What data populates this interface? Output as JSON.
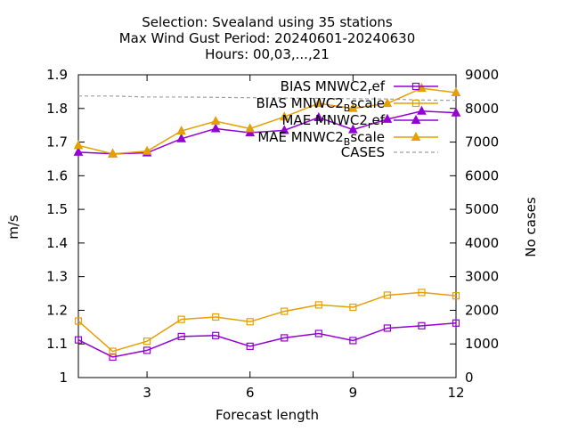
{
  "chart_data": {
    "type": "line",
    "title_lines": [
      "Selection: Svealand using    35 stations",
      "Max Wind Gust   Period: 20240601-20240630",
      "Hours: 00,03,...,21"
    ],
    "xlabel": "Forecast length",
    "ylabel": "m/s",
    "y2label": "No cases",
    "x": [
      1,
      2,
      3,
      4,
      5,
      6,
      7,
      8,
      9,
      10,
      11,
      12
    ],
    "xlim": [
      1,
      12
    ],
    "ylim": [
      1.0,
      1.9
    ],
    "y2lim": [
      0,
      9000
    ],
    "xticks": [
      3,
      6,
      9,
      12
    ],
    "yticks": [
      1,
      1.1,
      1.2,
      1.3,
      1.4,
      1.5,
      1.6,
      1.7,
      1.8,
      1.9
    ],
    "y2ticks": [
      0,
      1000,
      2000,
      3000,
      4000,
      5000,
      6000,
      7000,
      8000,
      9000
    ],
    "grid": false,
    "legend_position": "top-right",
    "series": [
      {
        "label": "BIAS MNWC2_ref",
        "legend_main": "BIAS MNWC2",
        "legend_sub": "r",
        "legend_rest": "ef",
        "color": "#9400d3",
        "marker": "square",
        "axis": "y",
        "values": [
          1.112,
          1.061,
          1.081,
          1.122,
          1.125,
          1.093,
          1.118,
          1.131,
          1.11,
          1.147,
          1.154,
          1.162
        ]
      },
      {
        "label": "BIAS MNWC2_Bscale",
        "legend_main": "BIAS MNWC2",
        "legend_sub": "B",
        "legend_rest": "scale",
        "color": "#e69f00",
        "marker": "square",
        "axis": "y",
        "values": [
          1.168,
          1.078,
          1.108,
          1.173,
          1.18,
          1.166,
          1.197,
          1.216,
          1.209,
          1.245,
          1.253,
          1.243
        ]
      },
      {
        "label": "MAE MNWC2_ref",
        "legend_main": "MAE MNWC2",
        "legend_sub": "r",
        "legend_rest": "ef",
        "color": "#9400d3",
        "marker": "triangle",
        "axis": "y",
        "values": [
          1.67,
          1.665,
          1.668,
          1.71,
          1.74,
          1.728,
          1.735,
          1.773,
          1.737,
          1.768,
          1.792,
          1.787
        ]
      },
      {
        "label": "MAE MNWC2_Bscale",
        "legend_main": "MAE MNWC2",
        "legend_sub": "B",
        "legend_rest": "scale",
        "color": "#e69f00",
        "marker": "triangle",
        "axis": "y",
        "values": [
          1.69,
          1.665,
          1.673,
          1.733,
          1.762,
          1.74,
          1.775,
          1.815,
          1.8,
          1.815,
          1.86,
          1.847
        ]
      },
      {
        "label": "CASES",
        "legend_main": "CASES",
        "legend_sub": "",
        "legend_rest": "",
        "color": "#a0a0a0",
        "marker": "none",
        "dashed": true,
        "axis": "y2",
        "values": [
          8370,
          8370,
          8340,
          8340,
          8330,
          8320,
          8310,
          8300,
          8290,
          8280,
          8250,
          8240
        ]
      }
    ]
  }
}
